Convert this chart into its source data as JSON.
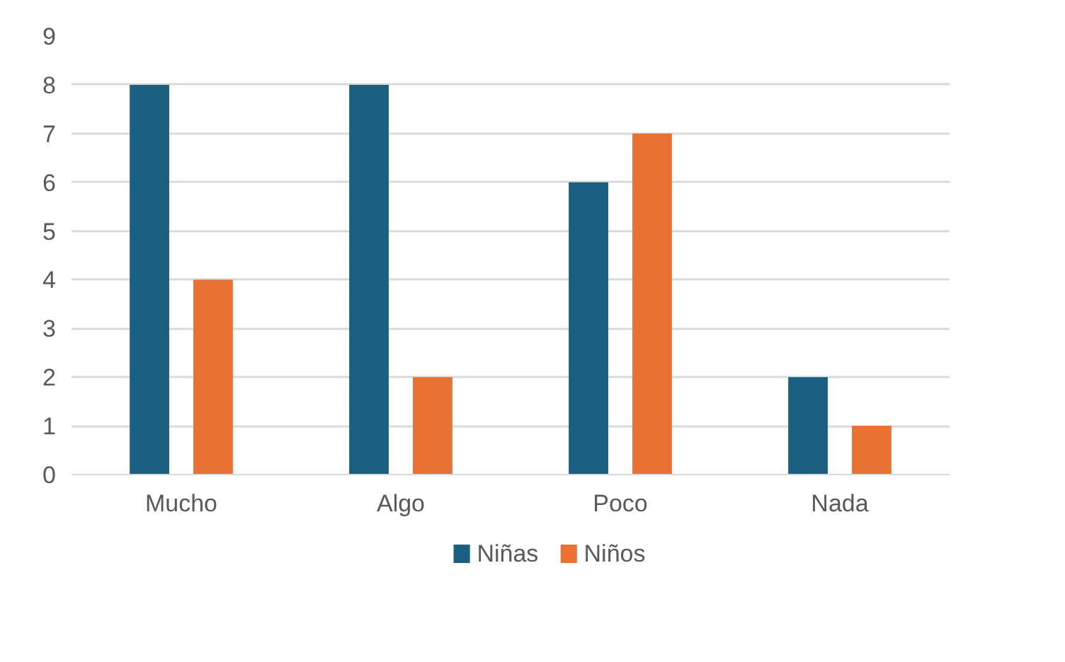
{
  "chart_data": {
    "type": "bar",
    "categories": [
      "Mucho",
      "Algo",
      "Poco",
      "Nada"
    ],
    "series": [
      {
        "name": "Niñas",
        "color": "#1a5f80",
        "values": [
          8,
          8,
          6,
          2
        ]
      },
      {
        "name": "Niños",
        "color": "#e97132",
        "values": [
          4,
          2,
          7,
          1
        ]
      }
    ],
    "ylim": [
      0,
      9
    ],
    "yticks": [
      0,
      1,
      2,
      3,
      4,
      5,
      6,
      7,
      8,
      9
    ],
    "grid": "y",
    "legend": "bottom"
  }
}
